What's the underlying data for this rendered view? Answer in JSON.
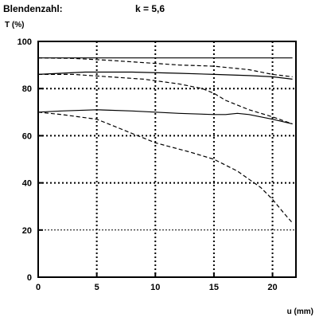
{
  "header": {
    "label": "Blendenzahl:",
    "value": "k = 5,6"
  },
  "chart_data": {
    "type": "line",
    "title": "",
    "xlabel": "u (mm)",
    "ylabel": "T (%)",
    "xlim": [
      0,
      22
    ],
    "ylim": [
      0,
      100
    ],
    "x_ticks": [
      0,
      5,
      10,
      15,
      20
    ],
    "y_ticks": [
      0,
      20,
      40,
      60,
      80,
      100
    ],
    "grid": true,
    "legend": "none",
    "series": [
      {
        "style": "solid",
        "x": [
          0,
          5,
          10,
          15,
          20,
          21.7
        ],
        "y": [
          93,
          93,
          93,
          93,
          93,
          93
        ]
      },
      {
        "style": "dashed",
        "x": [
          0,
          3,
          6,
          9,
          12,
          15,
          18,
          20,
          21.7
        ],
        "y": [
          93,
          92.8,
          92,
          91,
          90,
          89.5,
          88,
          86,
          85
        ]
      },
      {
        "style": "solid",
        "x": [
          0,
          4,
          8,
          12,
          15,
          18,
          20,
          21.7
        ],
        "y": [
          86,
          87,
          87,
          86.5,
          86,
          85.5,
          85,
          84
        ]
      },
      {
        "style": "dashed",
        "x": [
          0,
          3,
          6,
          9,
          12,
          14,
          15,
          16,
          18,
          20,
          21.7
        ],
        "y": [
          86,
          86,
          85,
          84,
          82,
          80,
          78,
          75,
          71,
          68,
          65
        ]
      },
      {
        "style": "solid",
        "x": [
          0,
          2,
          5,
          8,
          10,
          12,
          15,
          16,
          17,
          18,
          20,
          21.7
        ],
        "y": [
          70,
          70.5,
          71,
          70.5,
          70,
          69.5,
          69,
          69,
          69.5,
          69,
          67,
          65
        ]
      },
      {
        "style": "dashed",
        "x": [
          0,
          2,
          5,
          7,
          10,
          13,
          15,
          17,
          19,
          20,
          21,
          21.7
        ],
        "y": [
          70,
          69,
          67,
          63,
          57,
          53,
          50,
          45,
          38,
          33,
          27,
          23
        ]
      }
    ]
  }
}
